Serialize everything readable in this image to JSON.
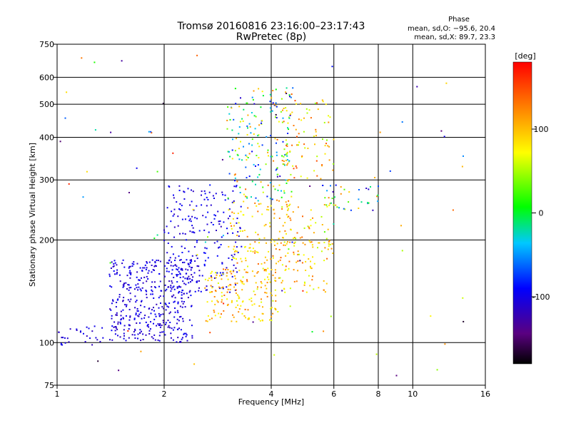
{
  "chart_data": {
    "type": "scatter",
    "title": "Tromsø 20160816 23:16:00–23:17:43",
    "subtitle": "RwPretec (8p)",
    "xlabel": "Frequency [MHz]",
    "ylabel": "Stationary phase Virtual Height [km]",
    "x_scale": "log",
    "y_scale": "log",
    "xlim": [
      1,
      16
    ],
    "ylim": [
      75,
      750
    ],
    "x_ticks": [
      1,
      2,
      4,
      6,
      8,
      10,
      16
    ],
    "x_tick_labels": [
      "1",
      "2",
      "4",
      "6",
      "8",
      "10",
      "16"
    ],
    "y_ticks": [
      75,
      100,
      200,
      300,
      400,
      500,
      600,
      750
    ],
    "y_tick_labels": [
      "75",
      "100",
      "200",
      "300",
      "400",
      "500",
      "600",
      "750"
    ],
    "grid": true,
    "phase_header": "Phase",
    "phase_stats_o": "mean, sd,O: −95.6, 20.4",
    "phase_stats_x": "mean, sd,X: 89.7, 23.3",
    "colorbar_label": "[deg]",
    "colorbar_ticks": [
      100,
      0,
      -100
    ],
    "colorbar_tick_labels": [
      "100",
      "0",
      "-100"
    ],
    "colorbar_range": [
      -180,
      180
    ],
    "point_clusters": [
      {
        "x_range": [
          1.0,
          1.35
        ],
        "y_range": [
          98,
          112
        ],
        "phase_range": [
          -120,
          -95
        ],
        "count": 30
      },
      {
        "x_range": [
          1.4,
          2.4
        ],
        "y_range": [
          100,
          175
        ],
        "phase_range": [
          -120,
          -90
        ],
        "count": 420
      },
      {
        "x_range": [
          2.0,
          3.3
        ],
        "y_range": [
          140,
          290
        ],
        "phase_range": [
          -118,
          -85
        ],
        "count": 230
      },
      {
        "x_range": [
          2.6,
          4.2
        ],
        "y_range": [
          115,
          165
        ],
        "phase_range": [
          60,
          135
        ],
        "count": 180
      },
      {
        "x_range": [
          3.0,
          4.5
        ],
        "y_range": [
          160,
          260
        ],
        "phase_range": [
          60,
          140
        ],
        "count": 120
      },
      {
        "x_range": [
          3.0,
          4.6
        ],
        "y_range": [
          260,
          560
        ],
        "phase_range": [
          -115,
          140
        ],
        "count": 200
      },
      {
        "x_range": [
          4.2,
          6.0
        ],
        "y_range": [
          140,
          270
        ],
        "phase_range": [
          50,
          140
        ],
        "count": 120
      },
      {
        "x_range": [
          4.3,
          6.0
        ],
        "y_range": [
          300,
          520
        ],
        "phase_range": [
          40,
          150
        ],
        "count": 80
      },
      {
        "x_range": [
          5.5,
          8.0
        ],
        "y_range": [
          240,
          290
        ],
        "phase_range": [
          -130,
          130
        ],
        "count": 40
      },
      {
        "x_range": [
          1.0,
          14.0
        ],
        "y_range": [
          78,
          700
        ],
        "phase_range": [
          -170,
          170
        ],
        "count": 80
      }
    ]
  }
}
